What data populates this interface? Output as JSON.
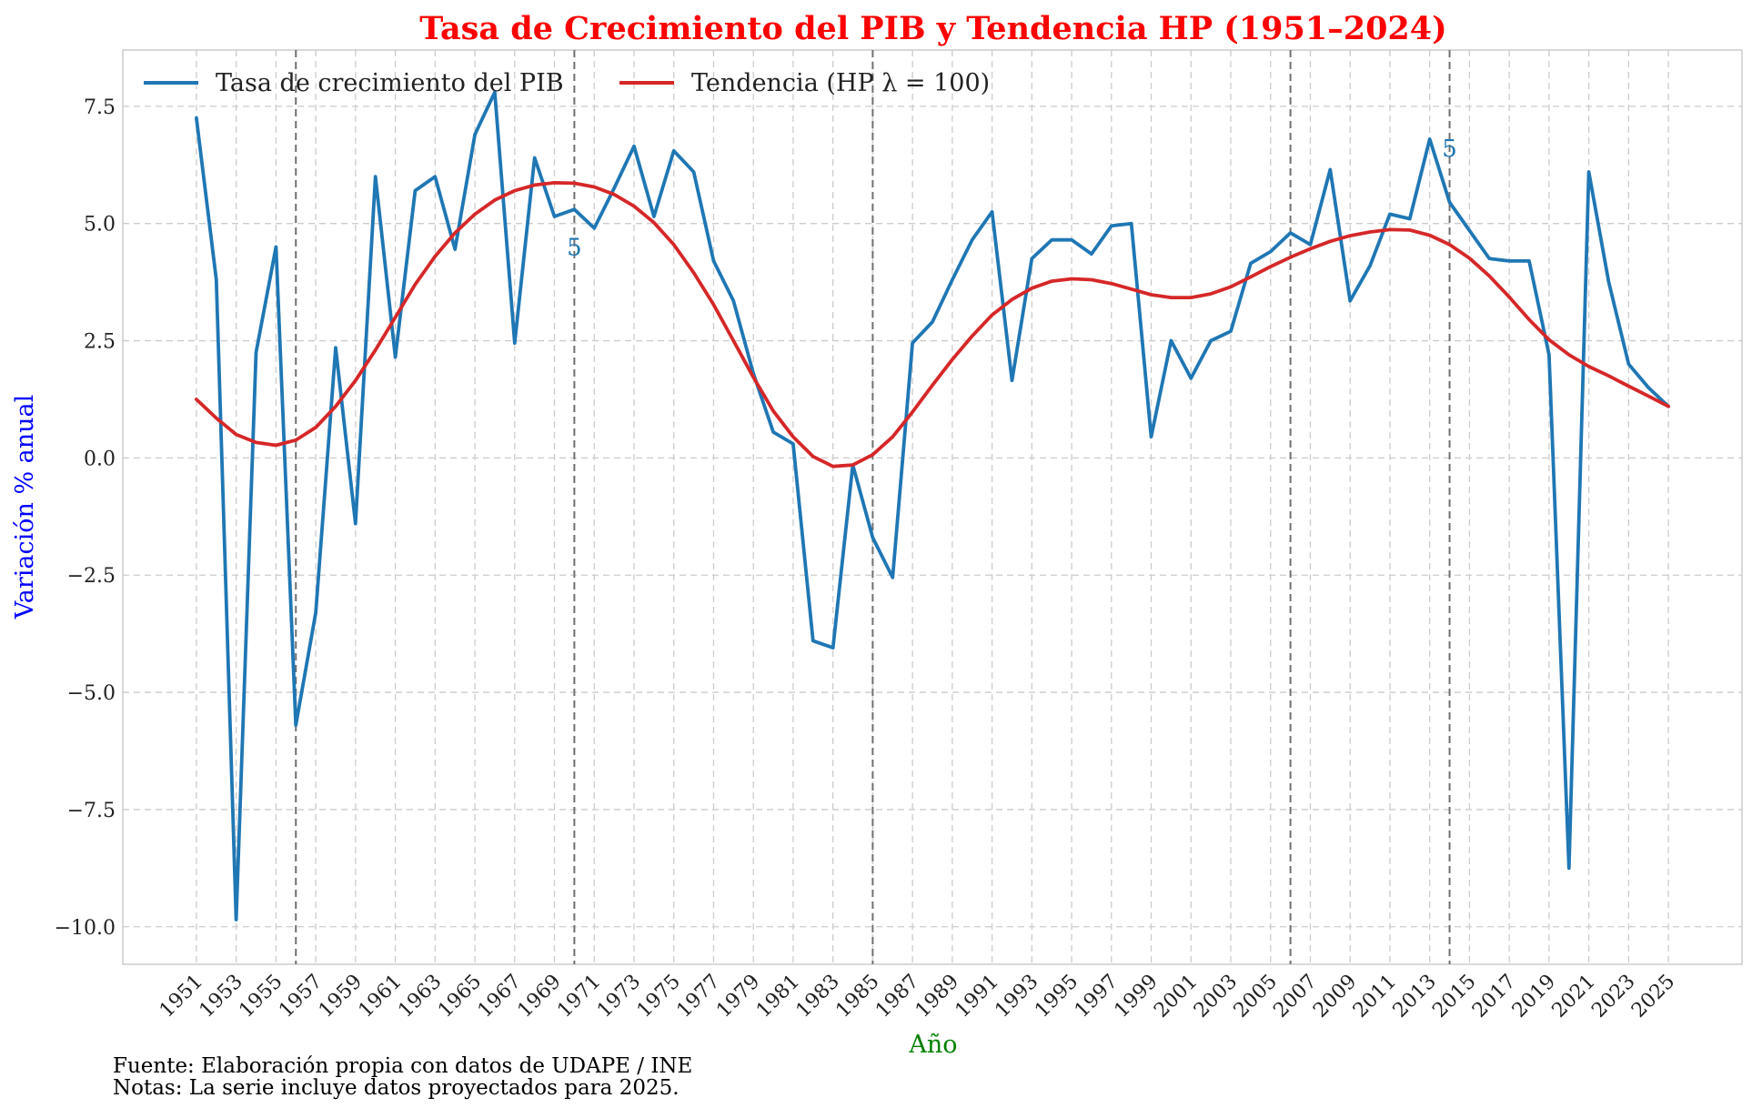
{
  "chart_data": {
    "type": "line",
    "title": "Tasa de Crecimiento del PIB y Tendencia HP (1951–2024)",
    "xlabel": "Año",
    "ylabel": "Variación % anual",
    "xlim": [
      1947.3,
      2028.7
    ],
    "ylim": [
      -10.8,
      8.7
    ],
    "x_ticks": [
      1951,
      1953,
      1955,
      1957,
      1959,
      1961,
      1963,
      1965,
      1967,
      1969,
      1971,
      1973,
      1975,
      1977,
      1979,
      1981,
      1983,
      1985,
      1987,
      1989,
      1991,
      1993,
      1995,
      1997,
      1999,
      2001,
      2003,
      2005,
      2007,
      2009,
      2011,
      2013,
      2015,
      2017,
      2019,
      2021,
      2023,
      2025
    ],
    "y_ticks": [
      -10.0,
      -7.5,
      -5.0,
      -2.5,
      0.0,
      2.5,
      5.0,
      7.5
    ],
    "y_tick_labels": [
      "−10.0",
      "−7.5",
      "−5.0",
      "−2.5",
      "0.0",
      "2.5",
      "5.0",
      "7.5"
    ],
    "grid": true,
    "legend_position": "top-left",
    "x": [
      1951,
      1952,
      1953,
      1954,
      1955,
      1956,
      1957,
      1958,
      1959,
      1960,
      1961,
      1962,
      1963,
      1964,
      1965,
      1966,
      1967,
      1968,
      1969,
      1970,
      1971,
      1972,
      1973,
      1974,
      1975,
      1976,
      1977,
      1978,
      1979,
      1980,
      1981,
      1982,
      1983,
      1984,
      1985,
      1986,
      1987,
      1988,
      1989,
      1990,
      1991,
      1992,
      1993,
      1994,
      1995,
      1996,
      1997,
      1998,
      1999,
      2000,
      2001,
      2002,
      2003,
      2004,
      2005,
      2006,
      2007,
      2008,
      2009,
      2010,
      2011,
      2012,
      2013,
      2014,
      2015,
      2016,
      2017,
      2018,
      2019,
      2020,
      2021,
      2022,
      2023,
      2024,
      2025
    ],
    "series": [
      {
        "name": "Tasa de crecimiento del PIB",
        "color": "#1f77b4",
        "values": [
          7.25,
          3.8,
          -9.85,
          2.25,
          4.5,
          -5.7,
          -3.3,
          2.35,
          -1.4,
          6.0,
          2.15,
          5.7,
          6.0,
          4.45,
          6.9,
          7.8,
          2.45,
          6.4,
          5.15,
          5.3,
          4.9,
          5.75,
          6.65,
          5.15,
          6.55,
          6.1,
          4.2,
          3.35,
          1.8,
          0.55,
          0.3,
          -3.9,
          -4.05,
          -0.15,
          -1.7,
          -2.55,
          2.45,
          2.9,
          3.8,
          4.65,
          5.25,
          1.65,
          4.25,
          4.65,
          4.65,
          4.35,
          4.95,
          5.0,
          0.45,
          2.5,
          1.7,
          2.5,
          2.7,
          4.15,
          4.4,
          4.8,
          4.55,
          6.15,
          3.35,
          4.1,
          5.2,
          5.1,
          6.8,
          5.45,
          4.85,
          4.25,
          4.2,
          4.2,
          2.2,
          -8.75,
          6.1,
          3.75,
          2.0,
          1.5,
          1.1
        ]
      },
      {
        "name": "Tendencia (HP λ = 100)",
        "color": "#d62728",
        "values": [
          1.25,
          0.85,
          0.5,
          0.33,
          0.27,
          0.38,
          0.65,
          1.1,
          1.65,
          2.3,
          3.0,
          3.7,
          4.3,
          4.8,
          5.2,
          5.5,
          5.7,
          5.82,
          5.87,
          5.86,
          5.78,
          5.62,
          5.37,
          5.02,
          4.55,
          3.95,
          3.27,
          2.5,
          1.72,
          1.0,
          0.45,
          0.03,
          -0.18,
          -0.15,
          0.07,
          0.45,
          0.98,
          1.55,
          2.1,
          2.6,
          3.05,
          3.38,
          3.62,
          3.77,
          3.82,
          3.8,
          3.72,
          3.6,
          3.48,
          3.42,
          3.42,
          3.5,
          3.65,
          3.86,
          4.08,
          4.28,
          4.46,
          4.62,
          4.74,
          4.82,
          4.87,
          4.86,
          4.75,
          4.55,
          4.26,
          3.88,
          3.43,
          2.95,
          2.52,
          2.2,
          1.95,
          1.75,
          1.53,
          1.32,
          1.1
        ]
      }
    ],
    "vlines": [
      1956,
      1970,
      1985,
      2006,
      2014
    ],
    "annotations": [
      {
        "x": 1970,
        "y": 4.5,
        "text": "5"
      },
      {
        "x": 2014,
        "y": 6.6,
        "text": "5"
      }
    ],
    "notes": [
      "Fuente: Elaboración propia con datos de UDAPE / INE",
      "Notas: La serie incluye datos proyectados para 2025."
    ]
  }
}
